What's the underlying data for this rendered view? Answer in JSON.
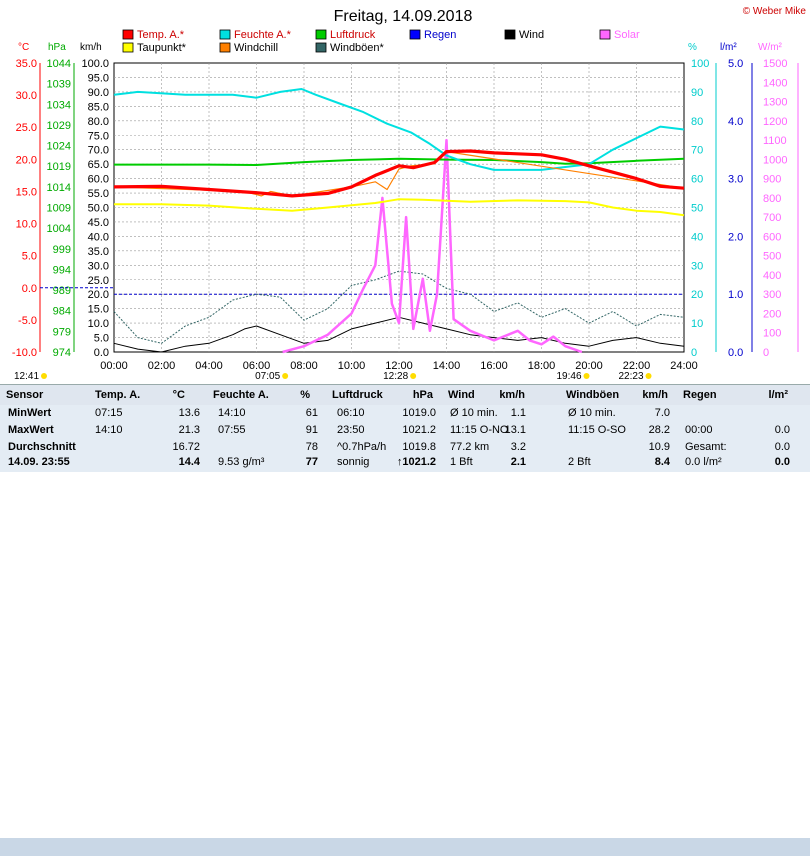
{
  "title": "Freitag, 14.09.2018",
  "copyright": "© Weber Mike",
  "legend": [
    {
      "name": "Temp. A.*",
      "color": "#ff0000"
    },
    {
      "name": "Taupunkt*",
      "color": "#ffff00"
    },
    {
      "name": "Feuchte A.*",
      "color": "#00e0e0"
    },
    {
      "name": "Windchill",
      "color": "#ff8000"
    },
    {
      "name": "Luftdruck",
      "color": "#00cc00"
    },
    {
      "name": "Windböen*",
      "color": "#336666"
    },
    {
      "name": "Regen",
      "color": "#0000ff"
    },
    {
      "name": "Wind",
      "color": "#000000"
    },
    {
      "name": "Solar",
      "color": "#ff66ff"
    }
  ],
  "axes": {
    "temp": {
      "unit": "°C",
      "ticks": [
        "35.0",
        "30.0",
        "25.0",
        "20.0",
        "15.0",
        "10.0",
        "5.0",
        "0.0",
        "-5.0",
        "-10.0"
      ],
      "color": "#ff0000"
    },
    "pressure": {
      "unit": "hPa",
      "ticks": [
        "1044",
        "1039",
        "1034",
        "1029",
        "1024",
        "1019",
        "1014",
        "1009",
        "1004",
        "999",
        "994",
        "989",
        "984",
        "979",
        "974"
      ],
      "color": "#00aa00"
    },
    "wind": {
      "unit": "km/h",
      "ticks": [
        "100.0",
        "95.0",
        "90.0",
        "85.0",
        "80.0",
        "75.0",
        "70.0",
        "65.0",
        "60.0",
        "55.0",
        "50.0",
        "45.0",
        "40.0",
        "35.0",
        "30.0",
        "25.0",
        "20.0",
        "15.0",
        "10.0",
        "5.0",
        "0.0"
      ]
    },
    "humidity": {
      "unit": "%",
      "ticks": [
        "100",
        "90",
        "80",
        "70",
        "60",
        "50",
        "40",
        "30",
        "20",
        "10",
        "0"
      ],
      "color": "#00cccc"
    },
    "rain": {
      "unit": "l/m²",
      "ticks": [
        "5.0",
        "4.0",
        "3.0",
        "2.0",
        "1.0",
        "0.0"
      ],
      "color": "#0000cc"
    },
    "solar": {
      "unit": "W/m²",
      "ticks": [
        "1500",
        "1400",
        "1300",
        "1200",
        "1100",
        "1000",
        "900",
        "800",
        "700",
        "600",
        "500",
        "400",
        "300",
        "200",
        "100",
        "0"
      ],
      "color": "#ff66ff"
    },
    "x_ticks": [
      "00:00",
      "02:00",
      "04:00",
      "06:00",
      "08:00",
      "10:00",
      "12:00",
      "14:00",
      "16:00",
      "18:00",
      "20:00",
      "22:00",
      "24:00"
    ]
  },
  "sun_markers": [
    {
      "label": "12:41",
      "hour": 0.05
    },
    {
      "label": "07:05",
      "hour": 7.08
    },
    {
      "label": "12:28",
      "hour": 12.47
    },
    {
      "label": "19:46",
      "hour": 19.77
    },
    {
      "label": "22:23",
      "hour": 22.38
    }
  ],
  "chart_data": {
    "type": "line",
    "x_unit": "hour",
    "series": [
      {
        "name": "Temp. A.*",
        "axis": "temp",
        "color": "#ff0000",
        "points": [
          [
            0,
            15.7
          ],
          [
            2,
            15.8
          ],
          [
            4,
            15.3
          ],
          [
            6,
            14.8
          ],
          [
            7.5,
            14.3
          ],
          [
            9,
            14.7
          ],
          [
            10,
            15.7
          ],
          [
            11,
            17.5
          ],
          [
            12,
            19.0
          ],
          [
            12.6,
            18.7
          ],
          [
            13.5,
            19.5
          ],
          [
            14,
            21.2
          ],
          [
            15,
            21.3
          ],
          [
            16,
            21.0
          ],
          [
            18,
            20.7
          ],
          [
            19,
            20.0
          ],
          [
            20,
            19.0
          ],
          [
            21,
            18.0
          ],
          [
            22,
            17.0
          ],
          [
            23,
            15.8
          ],
          [
            24,
            15.5
          ]
        ]
      },
      {
        "name": "Taupunkt*",
        "axis": "temp",
        "color": "#ffff00",
        "points": [
          [
            0,
            13.0
          ],
          [
            2,
            13.0
          ],
          [
            4,
            12.8
          ],
          [
            6,
            12.3
          ],
          [
            7.5,
            12.0
          ],
          [
            9,
            12.5
          ],
          [
            11,
            13.2
          ],
          [
            12,
            13.8
          ],
          [
            13,
            13.7
          ],
          [
            15,
            13.4
          ],
          [
            17,
            13.6
          ],
          [
            19,
            13.5
          ],
          [
            20,
            13.3
          ],
          [
            21,
            12.5
          ],
          [
            22,
            12.0
          ],
          [
            23,
            11.8
          ],
          [
            24,
            11.3
          ]
        ]
      },
      {
        "name": "Feuchte A.*",
        "axis": "humidity",
        "color": "#00e0e0",
        "points": [
          [
            0,
            89
          ],
          [
            1,
            90
          ],
          [
            3,
            89
          ],
          [
            5,
            89
          ],
          [
            6,
            88
          ],
          [
            7,
            90
          ],
          [
            7.9,
            91
          ],
          [
            8.5,
            89
          ],
          [
            9.5,
            86
          ],
          [
            10.5,
            83
          ],
          [
            11.5,
            79
          ],
          [
            12.5,
            76
          ],
          [
            13.3,
            72
          ],
          [
            14,
            68
          ],
          [
            15,
            65
          ],
          [
            16,
            63
          ],
          [
            18,
            63
          ],
          [
            19,
            64
          ],
          [
            20,
            65
          ],
          [
            21,
            70
          ],
          [
            22,
            74
          ],
          [
            23,
            78
          ],
          [
            24,
            77
          ]
        ]
      },
      {
        "name": "Luftdruck",
        "axis": "pressure",
        "color": "#00cc00",
        "points": [
          [
            0,
            1019.4
          ],
          [
            4,
            1019.4
          ],
          [
            6,
            1019.3
          ],
          [
            8,
            1020.0
          ],
          [
            10,
            1020.5
          ],
          [
            12,
            1020.8
          ],
          [
            14,
            1020.6
          ],
          [
            16,
            1020.5
          ],
          [
            18,
            1020.0
          ],
          [
            19,
            1019.6
          ],
          [
            20,
            1019.7
          ],
          [
            22,
            1020.3
          ],
          [
            24,
            1020.8
          ]
        ]
      },
      {
        "name": "Windchill",
        "axis": "temp",
        "color": "#ff8000",
        "points": [
          [
            0,
            15.7
          ],
          [
            5.5,
            15.0
          ],
          [
            6.2,
            14.3
          ],
          [
            6.6,
            15.0
          ],
          [
            7.5,
            14.3
          ],
          [
            10,
            15.7
          ],
          [
            11,
            16.5
          ],
          [
            11.5,
            15.3
          ],
          [
            12,
            18.5
          ],
          [
            12.5,
            19.0
          ],
          [
            13.5,
            19.3
          ],
          [
            14,
            21.2
          ],
          [
            24,
            15.5
          ]
        ]
      },
      {
        "name": "Windböen*",
        "axis": "wind",
        "color": "#336666",
        "points": [
          [
            0,
            14
          ],
          [
            1,
            5
          ],
          [
            2,
            3
          ],
          [
            3,
            9
          ],
          [
            4,
            12
          ],
          [
            5,
            18
          ],
          [
            6,
            20
          ],
          [
            7,
            19
          ],
          [
            8,
            11
          ],
          [
            9,
            15
          ],
          [
            10,
            23
          ],
          [
            11,
            25
          ],
          [
            12,
            28
          ],
          [
            13,
            27
          ],
          [
            14,
            22
          ],
          [
            15,
            20
          ],
          [
            16,
            14
          ],
          [
            17,
            17
          ],
          [
            18,
            12
          ],
          [
            19,
            15
          ],
          [
            20,
            10
          ],
          [
            21,
            14
          ],
          [
            22,
            9
          ],
          [
            23,
            13
          ],
          [
            24,
            12
          ]
        ]
      },
      {
        "name": "Wind",
        "axis": "wind",
        "color": "#000000",
        "points": [
          [
            0,
            3
          ],
          [
            1,
            1
          ],
          [
            2,
            0
          ],
          [
            3,
            2
          ],
          [
            4,
            3
          ],
          [
            5,
            6
          ],
          [
            5.5,
            8
          ],
          [
            6,
            9
          ],
          [
            7,
            6
          ],
          [
            8,
            3
          ],
          [
            9,
            4
          ],
          [
            10,
            8
          ],
          [
            11,
            10
          ],
          [
            12,
            12
          ],
          [
            13,
            10
          ],
          [
            14,
            8
          ],
          [
            15,
            6
          ],
          [
            16,
            5
          ],
          [
            17,
            4
          ],
          [
            18,
            5
          ],
          [
            19,
            3
          ],
          [
            20,
            2
          ],
          [
            21,
            4
          ],
          [
            22,
            5
          ],
          [
            23,
            3
          ],
          [
            24,
            2
          ]
        ]
      },
      {
        "name": "Solar",
        "axis": "solar",
        "color": "#ff66ff",
        "points": [
          [
            7.1,
            0
          ],
          [
            8,
            30
          ],
          [
            9,
            90
          ],
          [
            10,
            200
          ],
          [
            10.5,
            330
          ],
          [
            11,
            450
          ],
          [
            11.3,
            800
          ],
          [
            11.7,
            250
          ],
          [
            12,
            150
          ],
          [
            12.3,
            700
          ],
          [
            12.6,
            120
          ],
          [
            13,
            380
          ],
          [
            13.3,
            110
          ],
          [
            13.6,
            300
          ],
          [
            14,
            1100
          ],
          [
            14.3,
            170
          ],
          [
            15,
            110
          ],
          [
            16,
            60
          ],
          [
            17,
            110
          ],
          [
            17.5,
            60
          ],
          [
            18,
            40
          ],
          [
            18.5,
            80
          ],
          [
            19,
            30
          ],
          [
            19.7,
            0
          ]
        ]
      }
    ]
  },
  "table": {
    "headers": [
      {
        "label": "Sensor"
      },
      {
        "label": "Temp. A."
      },
      {
        "label": "°C"
      },
      {
        "label": "Feuchte A."
      },
      {
        "label": "%"
      },
      {
        "label": "Luftdruck"
      },
      {
        "label": "hPa"
      },
      {
        "label": "Wind"
      },
      {
        "label": "km/h"
      },
      {
        "label": "Windböen"
      },
      {
        "label": "km/h"
      },
      {
        "label": "Regen"
      },
      {
        "label": "l/m²"
      }
    ],
    "rows": [
      [
        "MinWert",
        "07:15",
        "13.6",
        "14:10",
        "61",
        "06:10",
        "1019.0",
        "Ø 10 min.",
        "1.1",
        "Ø 10 min.",
        "7.0",
        "",
        ""
      ],
      [
        "MaxWert",
        "14:10",
        "21.3",
        "07:55",
        "91",
        "23:50",
        "1021.2",
        "11:15  O-NO",
        "13.1",
        "11:15  O-SO",
        "28.2",
        "00:00",
        "0.0"
      ],
      [
        "Durchschnitt",
        "",
        "16.72",
        "",
        "78",
        "^0.7hPa/h",
        "1019.8",
        "77.2 km",
        "3.2",
        "",
        "10.9",
        "Gesamt:",
        "0.0"
      ]
    ],
    "footer": [
      "14.09. 23:55",
      "",
      "14.4",
      "9.53 g/m³",
      "77",
      "sonnig",
      "↑1021.2",
      "1 Bft",
      "2.1",
      "2 Bft",
      "8.4",
      "0.0 l/m²",
      "0.0"
    ]
  }
}
